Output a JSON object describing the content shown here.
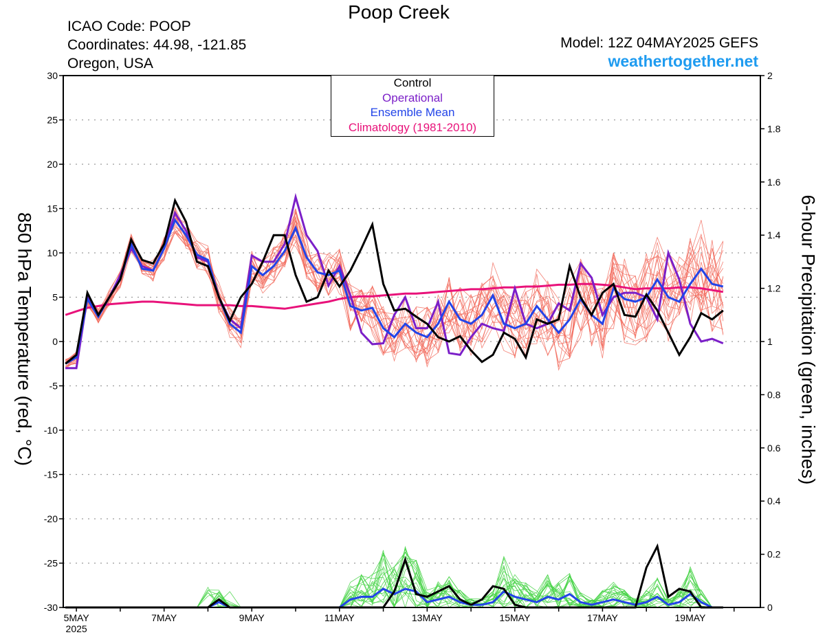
{
  "header": {
    "title": "Poop Creek",
    "icao": "ICAO Code: POOP",
    "coordinates": "Coordinates: 44.98, -121.85",
    "region": "Oregon, USA",
    "model": "Model: 12Z 04MAY2025 GEFS",
    "site": "weathertogether.net"
  },
  "colors": {
    "control": "#000000",
    "operational": "#7b1fc8",
    "ensemble_mean": "#2244e8",
    "climatology": "#e8127a",
    "members_temp": "#f26a5c",
    "members_precip": "#48d448",
    "site": "#1e9bf0"
  },
  "chart_data": {
    "type": "line",
    "x_axis": {
      "tick_labels": [
        "5MAY",
        "7MAY",
        "9MAY",
        "11MAY",
        "13MAY",
        "15MAY",
        "17MAY",
        "19MAY"
      ],
      "tick_days": [
        5,
        7,
        9,
        11,
        13,
        15,
        17,
        19
      ],
      "year_label": "2025",
      "range_days": [
        4.7,
        20.6
      ]
    },
    "y_left": {
      "label": "850 hPa Temperature (red, °C)",
      "range": [
        -30,
        30
      ],
      "ticks": [
        -30,
        -25,
        -20,
        -15,
        -10,
        -5,
        0,
        5,
        10,
        15,
        20,
        25,
        30
      ]
    },
    "y_right": {
      "label": "6-hour Precipitation (green, inches)",
      "range": [
        0,
        2
      ],
      "ticks": [
        0,
        0.2,
        0.4,
        0.6,
        0.8,
        1,
        1.2,
        1.4,
        1.6,
        1.8,
        2
      ]
    },
    "grid": true,
    "legend": {
      "placement": "top-center",
      "entries": [
        "Control",
        "Operational",
        "Ensemble Mean",
        "Climatology (1981-2010)"
      ]
    },
    "x_days_start": 4.75,
    "x_days_step": 0.25,
    "temperature": {
      "control": [
        -2.5,
        -1.5,
        5.5,
        3.0,
        5.0,
        7.0,
        11.5,
        9.2,
        8.8,
        11.0,
        15.9,
        13.5,
        9.0,
        8.5,
        5.0,
        2.3,
        5.0,
        6.5,
        9.0,
        12.0,
        12.0,
        7.5,
        4.5,
        5.0,
        8.0,
        6.2,
        8.0,
        10.5,
        13.2,
        6.5,
        3.5,
        3.7,
        2.8,
        2.0,
        0.5,
        0,
        0.6,
        -1.0,
        -2.3,
        -1.5,
        1.0,
        0.3,
        -1.8,
        2.5,
        2.0,
        2.5,
        8.5,
        5.0,
        3.0,
        5.5,
        6.5,
        3.0,
        2.8,
        5.3,
        3.5,
        1.0,
        -1.5,
        0.5,
        3.2,
        2.5,
        3.5
      ],
      "operational": [
        -3.0,
        -3.0,
        5.0,
        3.0,
        5.0,
        7.5,
        10.5,
        8.5,
        8.0,
        10.5,
        14.5,
        12.5,
        9.5,
        9.0,
        5.0,
        2.5,
        1.5,
        9.7,
        9.0,
        9.0,
        11.0,
        16.3,
        12.0,
        10.2,
        6.3,
        8.5,
        5.2,
        1.0,
        -0.3,
        -0.2,
        3.0,
        5.0,
        1.5,
        1.5,
        4.5,
        -1.3,
        -1.5,
        0.5,
        2.0,
        1.5,
        1.2,
        6.0,
        2.0,
        1.5,
        2.0,
        4.3,
        3.5,
        8.8,
        7.2,
        3.0,
        5.0,
        5.5,
        5.5,
        5.0,
        2.5,
        10.0,
        7.0,
        2.0,
        0,
        0.3,
        -0.2
      ],
      "ensemble_mean": [
        -2.5,
        -1.8,
        4.8,
        2.8,
        5.0,
        7.0,
        11.0,
        8.2,
        8.0,
        10.5,
        13.7,
        12.0,
        9.8,
        9.2,
        5.0,
        2.0,
        1.0,
        8.5,
        7.5,
        8.5,
        10.2,
        12.8,
        9.5,
        7.8,
        7.5,
        8.0,
        4.0,
        3.5,
        3.8,
        1.5,
        0.5,
        2.0,
        1.0,
        0.5,
        2.0,
        4.5,
        2.5,
        2.0,
        3.0,
        5.2,
        2.0,
        1.5,
        2.0,
        4.0,
        2.5,
        1.0,
        2.5,
        4.8,
        3.0,
        2.0,
        6.0,
        4.8,
        4.5,
        5.0,
        7.0,
        5.0,
        4.5,
        6.5,
        8.2,
        6.5,
        6.2
      ],
      "climatology": [
        3.0,
        3.4,
        3.8,
        4.0,
        4.2,
        4.3,
        4.4,
        4.5,
        4.5,
        4.4,
        4.3,
        4.2,
        4.1,
        4.1,
        4.1,
        4.1,
        4.0,
        4.0,
        3.9,
        3.8,
        3.7,
        3.9,
        4.1,
        4.3,
        4.5,
        4.8,
        5.0,
        5.1,
        5.1,
        5.2,
        5.3,
        5.4,
        5.4,
        5.5,
        5.6,
        5.7,
        5.8,
        5.9,
        5.9,
        6.0,
        6.1,
        6.1,
        6.2,
        6.2,
        6.3,
        6.4,
        6.4,
        6.5,
        6.5,
        6.4,
        6.3,
        6.1,
        5.9,
        6.0,
        6.0,
        6.0,
        6.1,
        6.1,
        6.0,
        5.8,
        5.6
      ]
    },
    "precipitation": {
      "control": [
        0,
        0,
        0,
        0,
        0,
        0,
        0,
        0,
        0,
        0,
        0,
        0,
        0,
        0,
        0.03,
        0,
        0,
        0,
        0,
        0,
        0,
        0,
        0,
        0,
        0,
        0,
        0,
        0,
        0,
        0,
        0.06,
        0.18,
        0.05,
        0.04,
        0.06,
        0.08,
        0.03,
        0.01,
        0.03,
        0.08,
        0.07,
        0.01,
        0,
        0,
        0,
        0,
        0,
        0,
        0,
        0,
        0,
        0,
        0,
        0.15,
        0.23,
        0.04,
        0.07,
        0.06,
        0,
        0,
        0
      ],
      "ensemble_mean": [
        0,
        0,
        0,
        0,
        0,
        0,
        0,
        0,
        0,
        0,
        0,
        0,
        0,
        0,
        0.02,
        0,
        0,
        0,
        0,
        0,
        0,
        0,
        0,
        0,
        0,
        0,
        0.03,
        0.04,
        0.04,
        0.07,
        0.05,
        0.07,
        0.06,
        0.02,
        0.03,
        0.04,
        0.02,
        0.01,
        0.01,
        0.02,
        0.06,
        0.04,
        0.03,
        0.02,
        0.04,
        0.03,
        0.05,
        0.02,
        0.01,
        0.02,
        0.03,
        0.02,
        0.01,
        0.02,
        0.04,
        0.01,
        0.02,
        0.05,
        0.02,
        0,
        0
      ]
    }
  }
}
